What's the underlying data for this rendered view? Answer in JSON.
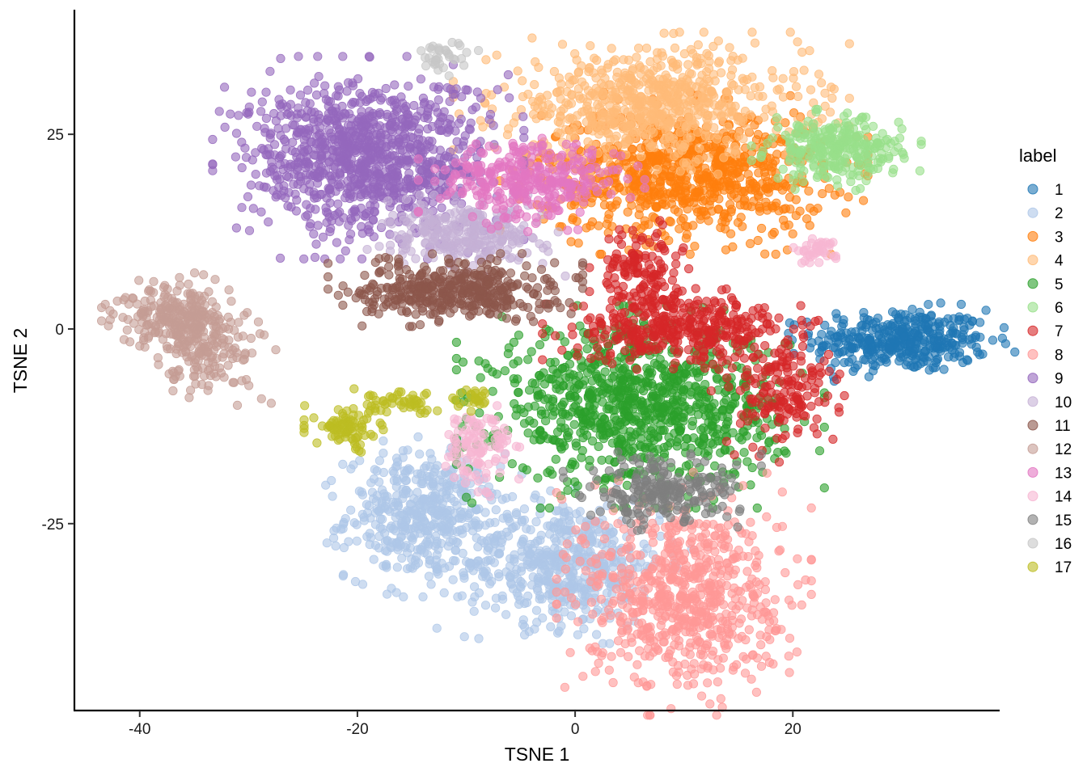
{
  "chart_data": {
    "type": "scatter",
    "xlabel": "TSNE 1",
    "ylabel": "TSNE 2",
    "xlim": [
      -46,
      39
    ],
    "ylim": [
      -49,
      41
    ],
    "x_ticks": [
      -40,
      -20,
      0,
      20
    ],
    "y_ticks": [
      -25,
      0,
      25
    ],
    "x_tick_labels": [
      "-40",
      "-20",
      "0",
      "20"
    ],
    "y_tick_labels": [
      "-25",
      "0",
      "25"
    ],
    "grid": false,
    "point_opacity": 0.6,
    "legend": {
      "title": "label",
      "placement": "right"
    },
    "series": [
      {
        "name": "1",
        "color": "#1f77b4",
        "clusters": [
          {
            "cx": 30,
            "cy": -1.5,
            "sx": 4.0,
            "sy": 2.0,
            "n": 380
          }
        ]
      },
      {
        "name": "2",
        "color": "#aec7e8",
        "clusters": [
          {
            "cx": -14,
            "cy": -24,
            "sx": 3.5,
            "sy": 4.0,
            "n": 450
          },
          {
            "cx": -1,
            "cy": -30,
            "sx": 4.5,
            "sy": 4.0,
            "n": 520
          }
        ]
      },
      {
        "name": "3",
        "color": "#ff7f0e",
        "clusters": [
          {
            "cx": 10,
            "cy": 20,
            "sx": 6.5,
            "sy": 4.0,
            "n": 850
          }
        ]
      },
      {
        "name": "4",
        "color": "#ffbb78",
        "clusters": [
          {
            "cx": 7,
            "cy": 29,
            "sx": 7.0,
            "sy": 3.5,
            "n": 650
          }
        ]
      },
      {
        "name": "5",
        "color": "#2ca02c",
        "clusters": [
          {
            "cx": 6,
            "cy": -10,
            "sx": 6.5,
            "sy": 5.0,
            "n": 950
          }
        ]
      },
      {
        "name": "6",
        "color": "#98df8a",
        "clusters": [
          {
            "cx": 24,
            "cy": 23,
            "sx": 3.0,
            "sy": 2.0,
            "n": 280
          }
        ]
      },
      {
        "name": "7",
        "color": "#d62728",
        "clusters": [
          {
            "cx": 10,
            "cy": 0,
            "sx": 5.0,
            "sy": 2.0,
            "n": 350
          },
          {
            "cx": 6,
            "cy": 7,
            "sx": 1.8,
            "sy": 3.0,
            "n": 150
          },
          {
            "cx": 19,
            "cy": -8,
            "sx": 2.5,
            "sy": 3.5,
            "n": 170
          }
        ]
      },
      {
        "name": "8",
        "color": "#ff9896",
        "clusters": [
          {
            "cx": 10,
            "cy": -34,
            "sx": 4.5,
            "sy": 6.0,
            "n": 700
          }
        ]
      },
      {
        "name": "9",
        "color": "#9467bd",
        "clusters": [
          {
            "cx": -19,
            "cy": 22,
            "sx": 5.5,
            "sy": 5.0,
            "n": 1000
          }
        ]
      },
      {
        "name": "10",
        "color": "#c5b0d5",
        "clusters": [
          {
            "cx": -10,
            "cy": 12,
            "sx": 3.5,
            "sy": 2.0,
            "n": 280
          }
        ]
      },
      {
        "name": "11",
        "color": "#8c564b",
        "clusters": [
          {
            "cx": -11,
            "cy": 5,
            "sx": 4.5,
            "sy": 1.8,
            "n": 420
          }
        ]
      },
      {
        "name": "12",
        "color": "#c49c94",
        "clusters": [
          {
            "cx": -37,
            "cy": 2,
            "sx": 2.5,
            "sy": 2.0,
            "n": 180
          },
          {
            "cx": -34,
            "cy": -2,
            "sx": 2.5,
            "sy": 3.0,
            "n": 200
          }
        ]
      },
      {
        "name": "13",
        "color": "#e377c2",
        "clusters": [
          {
            "cx": -4,
            "cy": 19,
            "sx": 4.0,
            "sy": 2.5,
            "n": 320
          }
        ]
      },
      {
        "name": "14",
        "color": "#f7b6d2",
        "clusters": [
          {
            "cx": -9,
            "cy": -15,
            "sx": 1.5,
            "sy": 2.5,
            "n": 110
          },
          {
            "cx": 22,
            "cy": 10,
            "sx": 1.0,
            "sy": 0.8,
            "n": 40
          }
        ]
      },
      {
        "name": "15",
        "color": "#7f7f7f",
        "clusters": [
          {
            "cx": 8,
            "cy": -21,
            "sx": 3.5,
            "sy": 2.0,
            "n": 220
          }
        ]
      },
      {
        "name": "16",
        "color": "#c7c7c7",
        "clusters": [
          {
            "cx": -12,
            "cy": 35,
            "sx": 1.2,
            "sy": 1.0,
            "n": 35
          }
        ]
      },
      {
        "name": "17",
        "color": "#bcbd22",
        "clusters": [
          {
            "cx": -21,
            "cy": -13,
            "sx": 1.5,
            "sy": 1.3,
            "n": 80
          },
          {
            "cx": -16,
            "cy": -9.5,
            "sx": 2.0,
            "sy": 0.7,
            "n": 50
          },
          {
            "cx": -9,
            "cy": -9,
            "sx": 1.0,
            "sy": 0.6,
            "n": 25
          }
        ]
      }
    ]
  }
}
